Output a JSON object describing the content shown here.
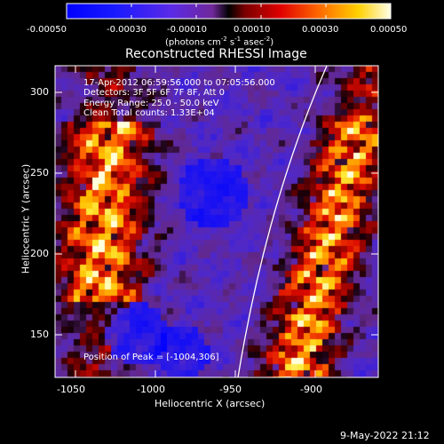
{
  "colorbar": {
    "tick_labels": [
      "-0.00050",
      "-0.00030",
      "-0.00010",
      "0.00010",
      "0.00030",
      "0.00050"
    ],
    "units_prefix": "(photons cm",
    "units_e1": "-2",
    "units_mid1": " s",
    "units_e2": "-1",
    "units_mid2": " asec",
    "units_e3": "-2",
    "units_suffix": ")"
  },
  "plot": {
    "title": "Reconstructed RHESSI Image",
    "xlabel": "Heliocentric X (arcsec)",
    "ylabel": "Heliocentric Y (arcsec)",
    "xticks": [
      "-1050",
      "-1000",
      "-950",
      "-900"
    ],
    "yticks": [
      "300",
      "250",
      "200",
      "150"
    ],
    "info_lines": [
      "17-Apr-2012 06:59:56.000 to 07:05:56.000",
      "Detectors: 3F 5F 6F 7F 8F, Att 0",
      "Energy Range: 25.0 - 50.0 keV",
      "Clean     Total counts: 1.33E+04"
    ],
    "peak_label": "Position of Peak = [-1004,306]"
  },
  "footer": {
    "date": "9-May-2022 21:12"
  },
  "colors": {
    "background": "#000000",
    "axis": "#ffffff",
    "limb_line": "#ffffff"
  }
}
